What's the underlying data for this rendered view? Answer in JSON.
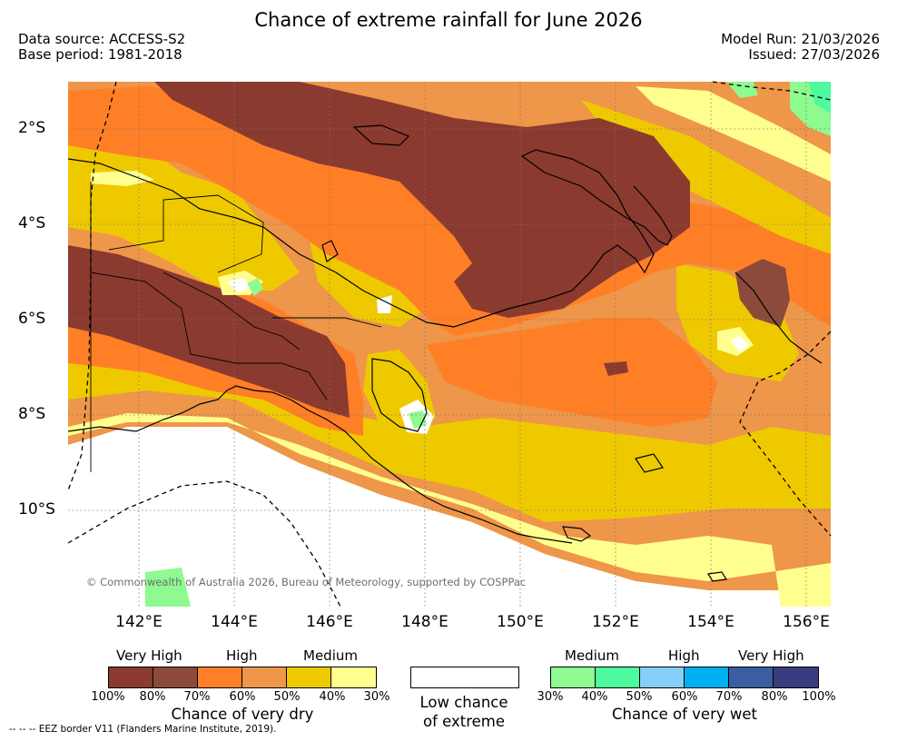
{
  "title": "Chance of extreme rainfall for June 2026",
  "data_source": "Data source: ACCESS-S2",
  "base_period": "Base period: 1981-2018",
  "model_run": "Model Run: 21/03/2026",
  "issued": "Issued: 27/03/2026",
  "lat_labels": [
    "2°S",
    "4°S",
    "6°S",
    "8°S",
    "10°S"
  ],
  "lon_labels": [
    "142°E",
    "144°E",
    "146°E",
    "148°E",
    "150°E",
    "152°E",
    "154°E",
    "156°E"
  ],
  "copyright": "© Commonwealth of Australia 2026, Bureau of Meteorology, supported by COSPPac",
  "legend": {
    "dry": {
      "levels": [
        "Very High",
        "High",
        "Medium"
      ],
      "colors": [
        "#8b3a2f",
        "#8b4a3a",
        "#ff7f27",
        "#ee9649",
        "#eec900",
        "#ffff8f"
      ],
      "ticks": [
        "100%",
        "80%",
        "70%",
        "60%",
        "50%",
        "40%",
        "30%"
      ],
      "caption": "Chance of very dry"
    },
    "low": {
      "caption_line1": "Low chance",
      "caption_line2": "of extreme"
    },
    "wet": {
      "levels": [
        "Medium",
        "High",
        "Very High"
      ],
      "colors": [
        "#8ffa8f",
        "#4dfa9e",
        "#87cefa",
        "#00b0f0",
        "#3a5fa0",
        "#3b3b80"
      ],
      "ticks": [
        "30%",
        "40%",
        "50%",
        "60%",
        "70%",
        "80%",
        "100%"
      ],
      "caption": "Chance of very wet"
    }
  },
  "eez_note": "--  --  -- EEZ border V11 (Flanders Marine Institute, 2019)."
}
